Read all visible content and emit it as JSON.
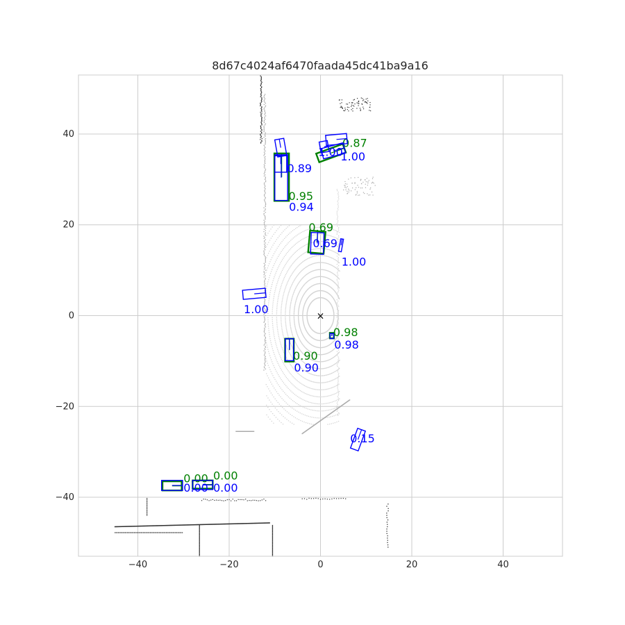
{
  "chart_data": {
    "type": "scatter",
    "title": "8d67c4024af6470faada45dc41ba9a16",
    "xlim": [
      -53,
      53
    ],
    "ylim": [
      -53,
      53
    ],
    "xticks": [
      -40,
      -20,
      0,
      20,
      40
    ],
    "yticks": [
      -40,
      -20,
      0,
      20,
      40
    ],
    "xtick_labels": [
      "−40",
      "−20",
      "0",
      "20",
      "40"
    ],
    "ytick_labels": [
      "−40",
      "−20",
      "0",
      "20",
      "40"
    ],
    "grid": true,
    "ego_marker": {
      "x": 0,
      "y": 0,
      "symbol": "×"
    },
    "colors": {
      "ground_truth": "#008000",
      "prediction": "#0000ff",
      "grid": "#cccccc",
      "points_near": "#d3d3d3",
      "points_mid": "#a9a9a9",
      "points_far": "#303030"
    },
    "ground_truth_boxes": [
      {
        "cx": -8.5,
        "cy": 30.5,
        "w": 3.2,
        "l": 10.4,
        "yaw": 90,
        "score": "0.95",
        "label_x": -7,
        "label_y": 25.5
      },
      {
        "cx": 2.3,
        "cy": 35.8,
        "w": 2.0,
        "l": 6.2,
        "yaw": 20,
        "score": "0.87",
        "label_x": 4.8,
        "label_y": 37.2
      },
      {
        "cx": -0.8,
        "cy": 16.2,
        "w": 3.4,
        "l": 4.8,
        "yaw": 85,
        "score": "0.69",
        "label_x": -2.6,
        "label_y": 18.6
      },
      {
        "cx": 2.5,
        "cy": -4.4,
        "w": 0.9,
        "l": 1.2,
        "yaw": 90,
        "score": "0.98",
        "label_x": 2.8,
        "label_y": -4.5
      },
      {
        "cx": -6.8,
        "cy": -7.6,
        "w": 1.9,
        "l": 5.0,
        "yaw": 90,
        "score": "0.90",
        "label_x": -6,
        "label_y": -9.7
      },
      {
        "cx": -32.5,
        "cy": -37.5,
        "w": 2.0,
        "l": 4.2,
        "yaw": 0,
        "score": "0.00",
        "label_x": -30,
        "label_y": -36.7
      },
      {
        "cx": -25.8,
        "cy": -37.2,
        "w": 1.8,
        "l": 4.4,
        "yaw": 0,
        "score": "0.00",
        "label_x": -23.5,
        "label_y": -36.1
      }
    ],
    "prediction_boxes": [
      {
        "cx": -8.6,
        "cy": 30.4,
        "w": 2.8,
        "l": 10.0,
        "yaw": 90,
        "score": "0.94",
        "label_x": -6.9,
        "label_y": 23.1
      },
      {
        "cx": -8.7,
        "cy": 33.4,
        "w": 2.6,
        "l": 3.6,
        "yaw": 90,
        "score": "0.89",
        "label_x": -7.3,
        "label_y": 31.6
      },
      {
        "cx": -8.7,
        "cy": 37.0,
        "w": 2.0,
        "l": 3.8,
        "yaw": 100,
        "score": "",
        "label_x": 0,
        "label_y": 0
      },
      {
        "cx": 3.5,
        "cy": 38.8,
        "w": 2.2,
        "l": 4.6,
        "yaw": 5,
        "score": "1.00",
        "label_x": 4.4,
        "label_y": 34.2
      },
      {
        "cx": 0.8,
        "cy": 37.2,
        "w": 2.4,
        "l": 1.8,
        "yaw": 10,
        "score": "1.00",
        "label_x": -0.5,
        "label_y": 35.2
      },
      {
        "cx": 2.8,
        "cy": 36.3,
        "w": 2.3,
        "l": 5.0,
        "yaw": 15,
        "score": "",
        "label_x": 0,
        "label_y": 0
      },
      {
        "cx": -0.7,
        "cy": 15.9,
        "w": 2.8,
        "l": 4.7,
        "yaw": 88,
        "score": "0.69",
        "label_x": -1.7,
        "label_y": 15.1
      },
      {
        "cx": 4.5,
        "cy": 15.5,
        "w": 0.6,
        "l": 2.8,
        "yaw": 80,
        "score": "1.00",
        "label_x": 4.6,
        "label_y": 11.0
      },
      {
        "cx": -14.5,
        "cy": 4.8,
        "w": 2.0,
        "l": 5.0,
        "yaw": 5,
        "score": "1.00",
        "label_x": -16.8,
        "label_y": 0.5
      },
      {
        "cx": 2.5,
        "cy": -4.5,
        "w": 0.8,
        "l": 1.1,
        "yaw": 90,
        "score": "0.98",
        "label_x": 3.0,
        "label_y": -7.3
      },
      {
        "cx": -6.8,
        "cy": -7.5,
        "w": 1.8,
        "l": 4.8,
        "yaw": 90,
        "score": "0.90",
        "label_x": -5.8,
        "label_y": -12.3
      },
      {
        "cx": 8.2,
        "cy": -27.3,
        "w": 1.8,
        "l": 4.6,
        "yaw": 70,
        "score": "0.15",
        "label_x": 6.5,
        "label_y": -27.9
      },
      {
        "cx": -32.5,
        "cy": -37.4,
        "w": 2.2,
        "l": 4.6,
        "yaw": 0,
        "score": "0.00",
        "label_x": -30,
        "label_y": -38.8
      },
      {
        "cx": -25.8,
        "cy": -37.3,
        "w": 2.0,
        "l": 4.4,
        "yaw": 0,
        "score": "0.00",
        "label_x": -23.5,
        "label_y": -38.8
      }
    ]
  }
}
